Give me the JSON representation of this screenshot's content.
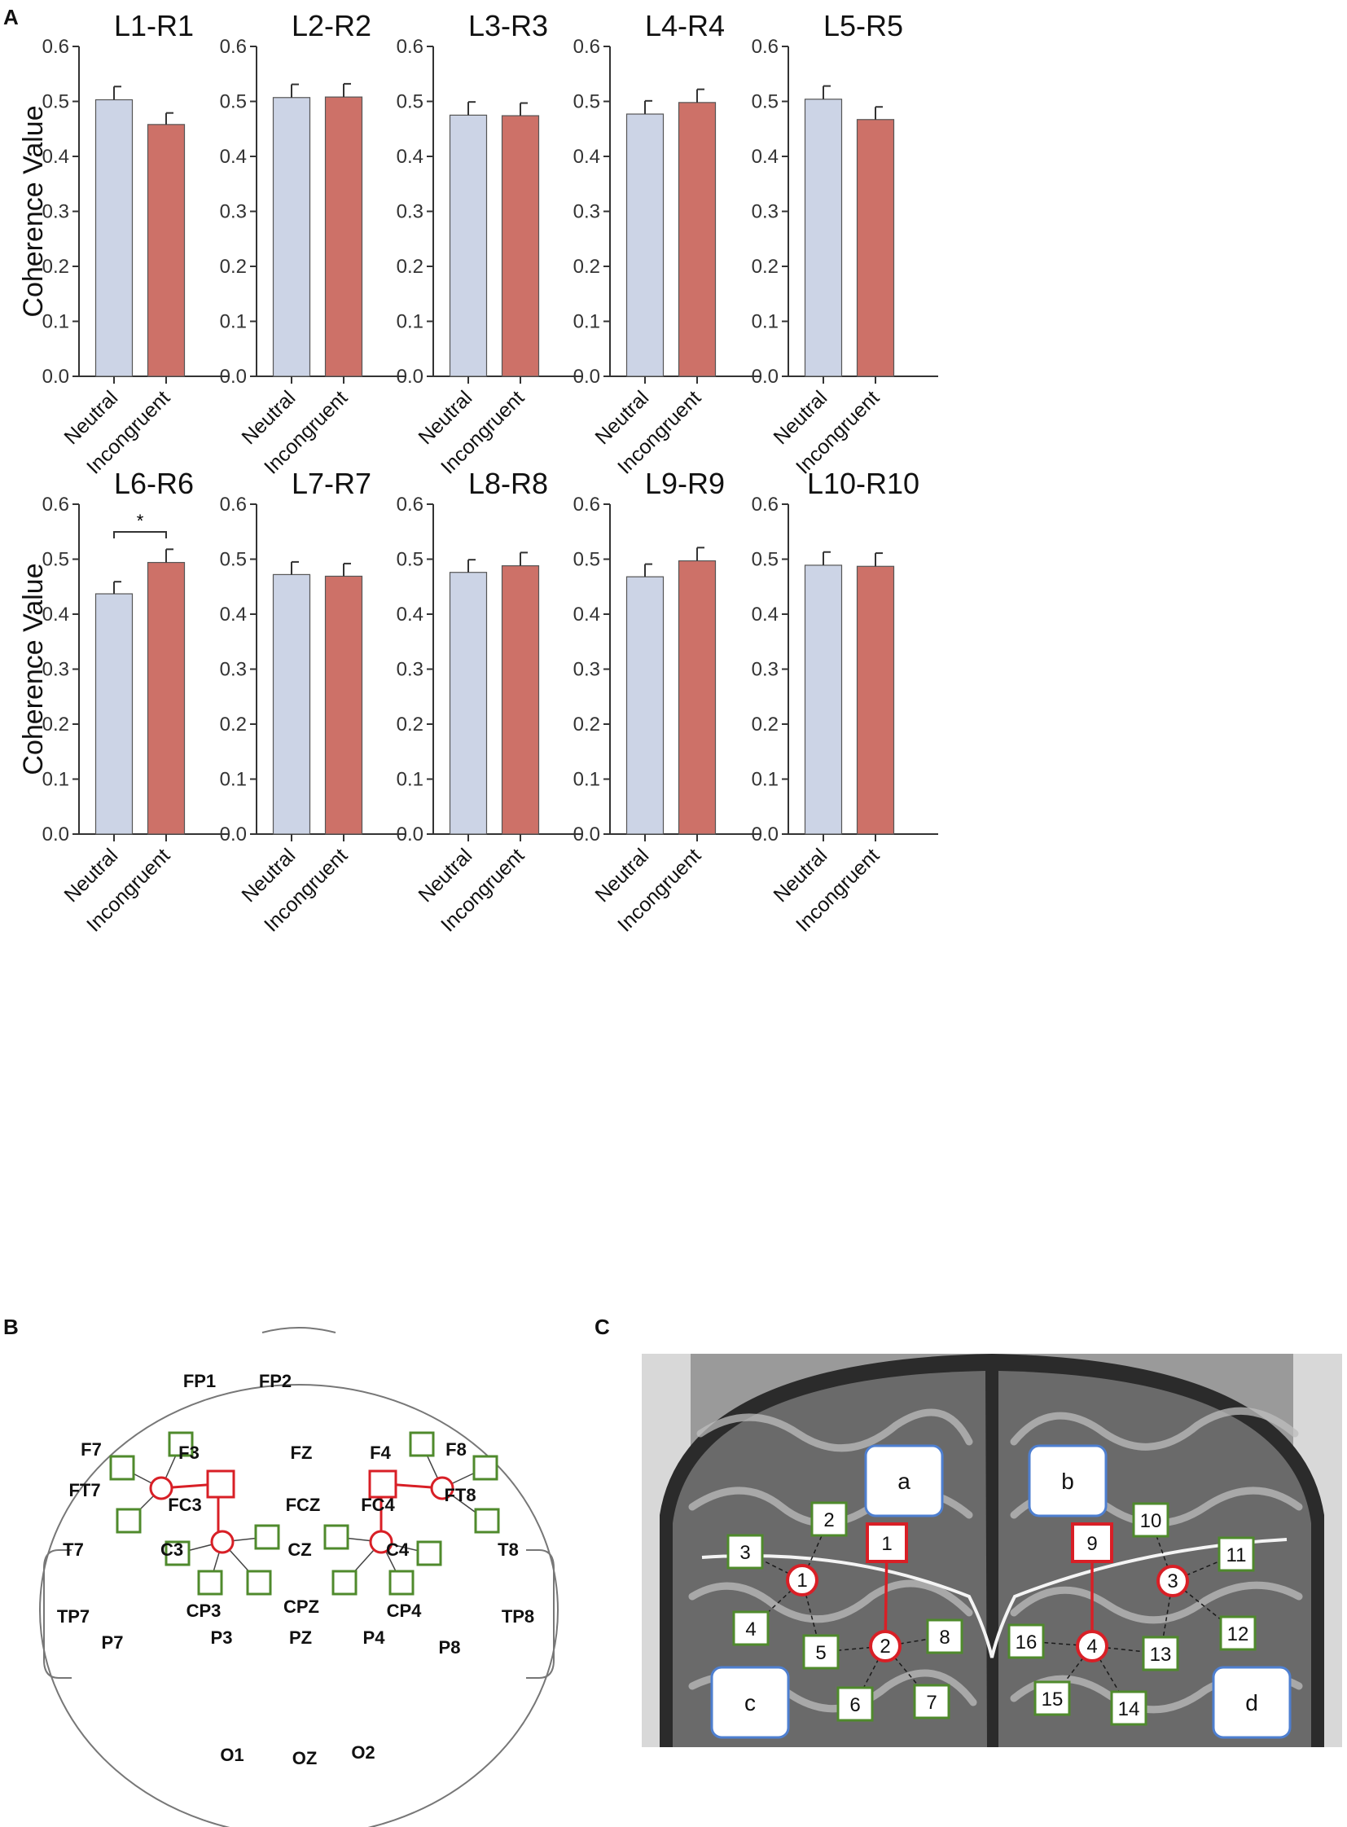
{
  "panel_labels": {
    "a": "A",
    "b": "B",
    "c": "C"
  },
  "colors": {
    "neutral": "#ccd4e6",
    "incongruent": "#cd7168",
    "red_marker": "#d81f26",
    "green_marker": "#4f8a2c",
    "blue_box": "#4e7fd0"
  },
  "chart_data": [
    {
      "type": "bar",
      "title": "L1-R1",
      "ylabel": "Coherence Value",
      "ylim": [
        0,
        0.6
      ],
      "yticks": [
        "0.0",
        "0.1",
        "0.2",
        "0.3",
        "0.4",
        "0.5",
        "0.6"
      ],
      "categories": [
        "Neutral",
        "Incongruent"
      ],
      "values": [
        0.503,
        0.458
      ],
      "errors": [
        0.024,
        0.021
      ],
      "significance": ""
    },
    {
      "type": "bar",
      "title": "L2-R2",
      "ylabel": "",
      "ylim": [
        0,
        0.6
      ],
      "yticks": [
        "0.0",
        "0.1",
        "0.2",
        "0.3",
        "0.4",
        "0.5",
        "0.6"
      ],
      "categories": [
        "Neutral",
        "Incongruent"
      ],
      "values": [
        0.507,
        0.508
      ],
      "errors": [
        0.024,
        0.024
      ],
      "significance": ""
    },
    {
      "type": "bar",
      "title": "L3-R3",
      "ylabel": "",
      "ylim": [
        0,
        0.6
      ],
      "yticks": [
        "0.0",
        "0.1",
        "0.2",
        "0.3",
        "0.4",
        "0.5",
        "0.6"
      ],
      "categories": [
        "Neutral",
        "Incongruent"
      ],
      "values": [
        0.475,
        0.474
      ],
      "errors": [
        0.024,
        0.023
      ],
      "significance": ""
    },
    {
      "type": "bar",
      "title": "L4-R4",
      "ylabel": "",
      "ylim": [
        0,
        0.6
      ],
      "yticks": [
        "0.0",
        "0.1",
        "0.2",
        "0.3",
        "0.4",
        "0.5",
        "0.6"
      ],
      "categories": [
        "Neutral",
        "Incongruent"
      ],
      "values": [
        0.477,
        0.498
      ],
      "errors": [
        0.024,
        0.024
      ],
      "significance": ""
    },
    {
      "type": "bar",
      "title": "L5-R5",
      "ylabel": "",
      "ylim": [
        0,
        0.6
      ],
      "yticks": [
        "0.0",
        "0.1",
        "0.2",
        "0.3",
        "0.4",
        "0.5",
        "0.6"
      ],
      "categories": [
        "Neutral",
        "Incongruent"
      ],
      "values": [
        0.504,
        0.467
      ],
      "errors": [
        0.024,
        0.023
      ],
      "significance": ""
    },
    {
      "type": "bar",
      "title": "L6-R6",
      "ylabel": "Coherence Value",
      "ylim": [
        0,
        0.6
      ],
      "yticks": [
        "0.0",
        "0.1",
        "0.2",
        "0.3",
        "0.4",
        "0.5",
        "0.6"
      ],
      "categories": [
        "Neutral",
        "Incongruent"
      ],
      "values": [
        0.437,
        0.494
      ],
      "errors": [
        0.022,
        0.024
      ],
      "significance": "*"
    },
    {
      "type": "bar",
      "title": "L7-R7",
      "ylabel": "",
      "ylim": [
        0,
        0.6
      ],
      "yticks": [
        "0.0",
        "0.1",
        "0.2",
        "0.3",
        "0.4",
        "0.5",
        "0.6"
      ],
      "categories": [
        "Neutral",
        "Incongruent"
      ],
      "values": [
        0.472,
        0.469
      ],
      "errors": [
        0.023,
        0.023
      ],
      "significance": ""
    },
    {
      "type": "bar",
      "title": "L8-R8",
      "ylabel": "",
      "ylim": [
        0,
        0.6
      ],
      "yticks": [
        "0.0",
        "0.1",
        "0.2",
        "0.3",
        "0.4",
        "0.5",
        "0.6"
      ],
      "categories": [
        "Neutral",
        "Incongruent"
      ],
      "values": [
        0.476,
        0.488
      ],
      "errors": [
        0.023,
        0.024
      ],
      "significance": ""
    },
    {
      "type": "bar",
      "title": "L9-R9",
      "ylabel": "",
      "ylim": [
        0,
        0.6
      ],
      "yticks": [
        "0.0",
        "0.1",
        "0.2",
        "0.3",
        "0.4",
        "0.5",
        "0.6"
      ],
      "categories": [
        "Neutral",
        "Incongruent"
      ],
      "values": [
        0.468,
        0.497
      ],
      "errors": [
        0.023,
        0.024
      ],
      "significance": ""
    },
    {
      "type": "bar",
      "title": "L10-R10",
      "ylabel": "",
      "ylim": [
        0,
        0.6
      ],
      "yticks": [
        "0.0",
        "0.1",
        "0.2",
        "0.3",
        "0.4",
        "0.5",
        "0.6"
      ],
      "categories": [
        "Neutral",
        "Incongruent"
      ],
      "values": [
        0.489,
        0.487
      ],
      "errors": [
        0.024,
        0.024
      ],
      "significance": ""
    }
  ],
  "eeg_map": {
    "electrodes": [
      "FP1",
      "FP2",
      "F7",
      "F3",
      "FZ",
      "F4",
      "F8",
      "FT7",
      "FC3",
      "FCZ",
      "FC4",
      "FT8",
      "T7",
      "C3",
      "CZ",
      "C4",
      "T8",
      "TP7",
      "CP3",
      "CPZ",
      "CP4",
      "TP8",
      "P7",
      "P3",
      "PZ",
      "P4",
      "P8",
      "O1",
      "OZ",
      "O2"
    ]
  },
  "brain_map": {
    "region_labels": [
      "a",
      "b",
      "c",
      "d"
    ],
    "green_labels": [
      "2",
      "3",
      "4",
      "5",
      "6",
      "7",
      "8",
      "10",
      "11",
      "12",
      "13",
      "14",
      "15",
      "16"
    ],
    "red_square_labels": [
      "1",
      "9"
    ],
    "red_circle_labels": [
      "1",
      "2",
      "3",
      "4"
    ]
  }
}
